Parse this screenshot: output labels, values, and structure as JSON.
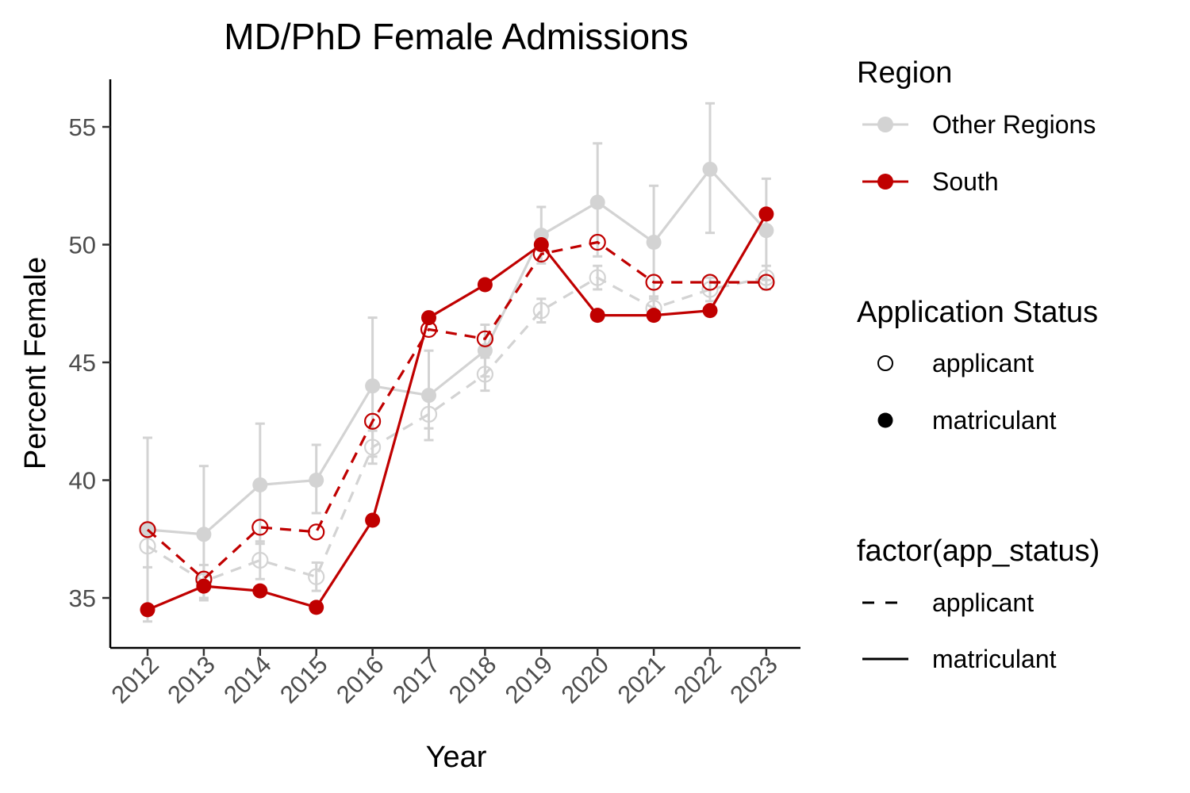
{
  "chart_data": {
    "type": "line",
    "title": "MD/PhD Female Admissions",
    "xlabel": "Year",
    "ylabel": "Percent Female",
    "x": [
      2012,
      2013,
      2014,
      2015,
      2016,
      2017,
      2018,
      2019,
      2020,
      2021,
      2022,
      2023
    ],
    "ylim": [
      33,
      57
    ],
    "yticks": [
      35,
      40,
      45,
      50,
      55
    ],
    "grid": false,
    "error_bars": true,
    "series": [
      {
        "region": "Other Regions",
        "status": "matriculant",
        "color": "#d3d3d3",
        "line": "solid",
        "marker": "filled",
        "values": [
          37.9,
          37.7,
          39.8,
          40.0,
          44.0,
          43.6,
          45.5,
          50.4,
          51.8,
          50.1,
          53.2,
          50.6
        ],
        "lower": [
          34.0,
          34.9,
          37.3,
          38.6,
          41.0,
          41.7,
          44.4,
          49.2,
          49.5,
          47.7,
          50.5,
          48.5
        ],
        "upper": [
          41.8,
          40.6,
          42.4,
          41.5,
          46.9,
          45.5,
          46.6,
          51.6,
          54.3,
          52.5,
          56.0,
          52.8
        ]
      },
      {
        "region": "Other Regions",
        "status": "applicant",
        "color": "#d3d3d3",
        "line": "dashed",
        "marker": "open",
        "values": [
          37.2,
          35.7,
          36.6,
          35.9,
          41.4,
          42.8,
          44.5,
          47.2,
          48.6,
          47.3,
          48.1,
          48.6
        ],
        "lower": [
          36.3,
          35.0,
          35.8,
          35.3,
          40.7,
          42.2,
          43.8,
          46.7,
          48.1,
          46.8,
          47.6,
          48.1
        ],
        "upper": [
          38.1,
          36.4,
          37.4,
          36.5,
          42.1,
          43.4,
          45.2,
          47.7,
          49.1,
          47.8,
          48.6,
          49.1
        ]
      },
      {
        "region": "South",
        "status": "applicant",
        "color": "#c00000",
        "line": "dashed",
        "marker": "open",
        "values": [
          37.9,
          35.8,
          38.0,
          37.8,
          42.5,
          46.4,
          46.0,
          49.6,
          50.1,
          48.4,
          48.4,
          48.4
        ]
      },
      {
        "region": "South",
        "status": "matriculant",
        "color": "#c00000",
        "line": "solid",
        "marker": "filled",
        "values": [
          34.5,
          35.5,
          35.3,
          34.6,
          38.3,
          46.9,
          48.3,
          50.0,
          47.0,
          47.0,
          47.2,
          51.3
        ]
      }
    ],
    "legends": [
      {
        "title": "Region",
        "entries": [
          {
            "label": "Other Regions",
            "color": "#d3d3d3",
            "symbol": "line-point"
          },
          {
            "label": "South",
            "color": "#c00000",
            "symbol": "line-point"
          }
        ]
      },
      {
        "title": "Application Status",
        "entries": [
          {
            "label": "applicant",
            "color": "#000000",
            "symbol": "open-point"
          },
          {
            "label": "matriculant",
            "color": "#000000",
            "symbol": "filled-point"
          }
        ]
      },
      {
        "title": "factor(app_status)",
        "entries": [
          {
            "label": "applicant",
            "color": "#000000",
            "symbol": "dashed-line"
          },
          {
            "label": "matriculant",
            "color": "#000000",
            "symbol": "solid-line"
          }
        ]
      }
    ],
    "legend_position": "right"
  }
}
